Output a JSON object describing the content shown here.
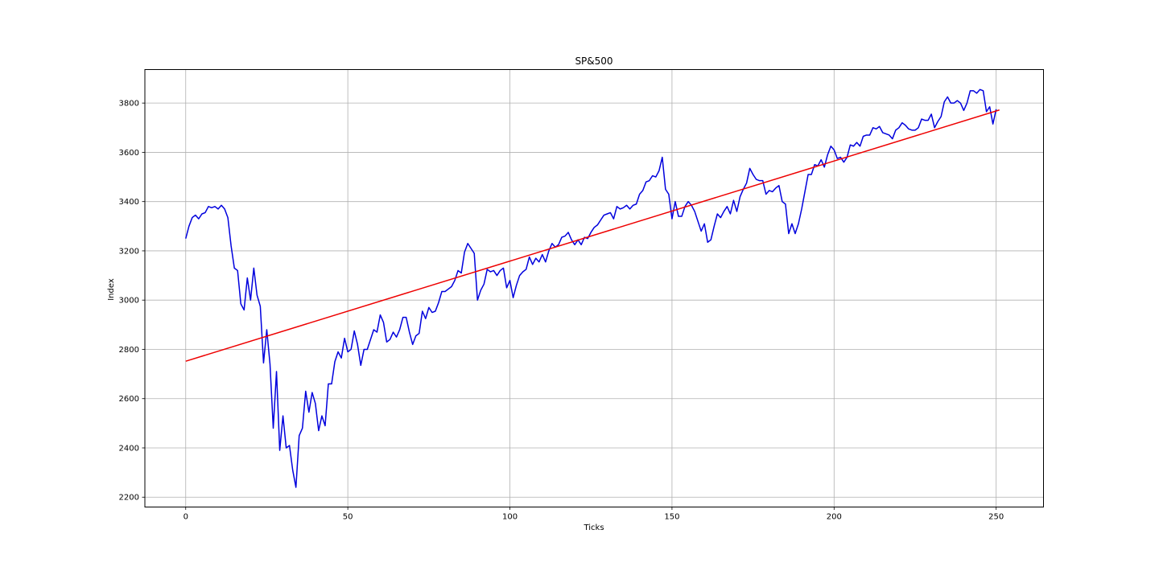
{
  "chart_data": {
    "type": "line",
    "title": "SP&500",
    "xlabel": "Ticks",
    "ylabel": "Index",
    "xlim": [
      -12.6,
      264.6
    ],
    "ylim": [
      2160,
      3936
    ],
    "xticks": [
      0,
      50,
      100,
      150,
      200,
      250
    ],
    "yticks": [
      2200,
      2400,
      2600,
      2800,
      3000,
      3200,
      3400,
      3600,
      3800
    ],
    "grid": true,
    "colors": {
      "price": "#0000dd",
      "trend": "#ee0000",
      "grid": "#b0b0b0"
    },
    "series": [
      {
        "role": "price",
        "x_start": 0,
        "values": [
          3250,
          3300,
          3335,
          3345,
          3330,
          3350,
          3355,
          3380,
          3375,
          3380,
          3370,
          3385,
          3370,
          3335,
          3220,
          3130,
          3120,
          2985,
          2960,
          3090,
          3000,
          3130,
          3020,
          2975,
          2745,
          2880,
          2740,
          2480,
          2710,
          2390,
          2530,
          2400,
          2410,
          2310,
          2240,
          2450,
          2480,
          2630,
          2545,
          2625,
          2580,
          2470,
          2530,
          2490,
          2660,
          2660,
          2750,
          2790,
          2765,
          2845,
          2790,
          2800,
          2875,
          2820,
          2735,
          2800,
          2800,
          2840,
          2880,
          2870,
          2940,
          2910,
          2830,
          2840,
          2870,
          2850,
          2880,
          2930,
          2930,
          2870,
          2820,
          2855,
          2865,
          2955,
          2925,
          2970,
          2950,
          2955,
          2990,
          3035,
          3035,
          3045,
          3055,
          3080,
          3120,
          3110,
          3195,
          3230,
          3210,
          3190,
          3000,
          3040,
          3065,
          3125,
          3115,
          3120,
          3100,
          3120,
          3130,
          3050,
          3080,
          3010,
          3060,
          3100,
          3115,
          3125,
          3175,
          3145,
          3170,
          3155,
          3185,
          3155,
          3200,
          3230,
          3215,
          3225,
          3255,
          3260,
          3275,
          3245,
          3225,
          3245,
          3225,
          3255,
          3250,
          3275,
          3295,
          3305,
          3325,
          3345,
          3350,
          3355,
          3330,
          3380,
          3370,
          3375,
          3385,
          3370,
          3385,
          3390,
          3430,
          3445,
          3480,
          3485,
          3505,
          3500,
          3525,
          3580,
          3450,
          3430,
          3330,
          3400,
          3340,
          3340,
          3380,
          3400,
          3385,
          3360,
          3320,
          3280,
          3310,
          3235,
          3245,
          3300,
          3350,
          3335,
          3360,
          3380,
          3350,
          3405,
          3360,
          3420,
          3450,
          3475,
          3535,
          3510,
          3490,
          3485,
          3485,
          3430,
          3445,
          3440,
          3455,
          3465,
          3400,
          3390,
          3270,
          3310,
          3270,
          3310,
          3370,
          3440,
          3510,
          3510,
          3550,
          3545,
          3570,
          3540,
          3590,
          3625,
          3610,
          3575,
          3580,
          3560,
          3580,
          3630,
          3625,
          3640,
          3625,
          3665,
          3670,
          3670,
          3700,
          3695,
          3705,
          3680,
          3675,
          3670,
          3655,
          3690,
          3700,
          3720,
          3710,
          3695,
          3690,
          3690,
          3700,
          3735,
          3730,
          3730,
          3755,
          3700,
          3725,
          3745,
          3805,
          3825,
          3800,
          3800,
          3810,
          3800,
          3770,
          3800,
          3850,
          3850,
          3840,
          3855,
          3850,
          3765,
          3785,
          3715,
          3775
        ]
      },
      {
        "role": "trend",
        "x": [
          0,
          251
        ],
        "values": [
          2752,
          3772
        ]
      }
    ]
  }
}
